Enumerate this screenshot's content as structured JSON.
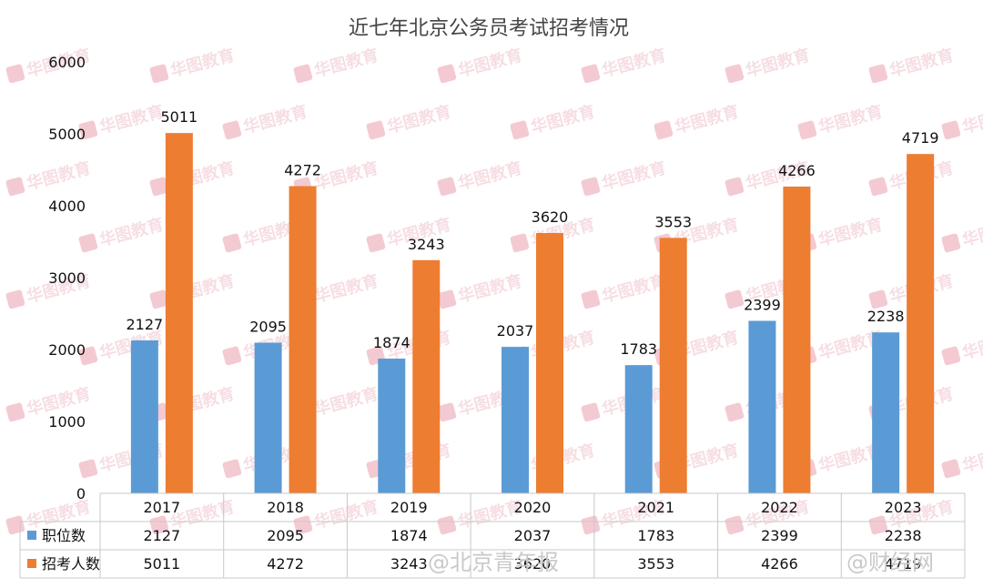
{
  "chart_data": {
    "type": "bar",
    "title": "近七年北京公务员考试招考情况",
    "categories": [
      "2017",
      "2018",
      "2019",
      "2020",
      "2021",
      "2022",
      "2023"
    ],
    "series": [
      {
        "name": "职位数",
        "color": "#5b9bd5",
        "values": [
          2127,
          2095,
          1874,
          2037,
          1783,
          2399,
          2238
        ],
        "table_values": [
          "2127",
          "2095",
          "1874",
          "2037",
          "1783",
          "2399",
          "2238"
        ]
      },
      {
        "name": "招考人数",
        "color": "#ed7d31",
        "values": [
          5011,
          4272,
          3243,
          3620,
          3553,
          4266,
          4719
        ],
        "table_values": [
          "5011",
          "4272",
          "3243",
          "3620",
          "3553",
          "4266",
          "4719"
        ]
      }
    ],
    "ylim": [
      0,
      6000
    ],
    "yticks": [
      0,
      1000,
      2000,
      3000,
      4000,
      5000,
      6000
    ],
    "grid": false,
    "data_table": true
  },
  "watermark": {
    "brand_text": "华图教育",
    "credit_1": "@北京青年报",
    "credit_2": "@财经网"
  }
}
